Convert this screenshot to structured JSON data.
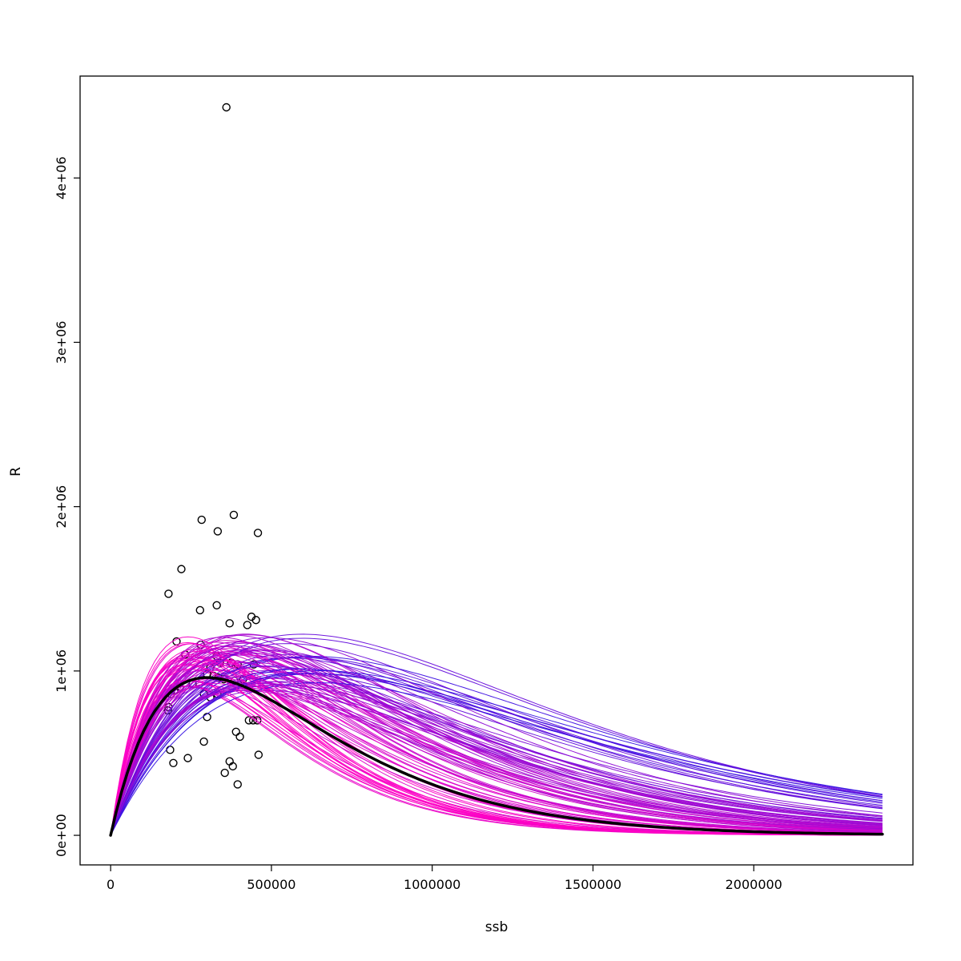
{
  "chart_data": {
    "type": "line",
    "title": "",
    "xlabel": "ssb",
    "ylabel": "R",
    "xlim": [
      -95000,
      2495000
    ],
    "ylim": [
      -180000,
      4620000
    ],
    "grid": false,
    "box": true,
    "legend": null,
    "x_ticks": [
      {
        "value": 0,
        "label": "0"
      },
      {
        "value": 500000,
        "label": "500000"
      },
      {
        "value": 1000000,
        "label": "1000000"
      },
      {
        "value": 1500000,
        "label": "1500000"
      },
      {
        "value": 2000000,
        "label": "2000000"
      }
    ],
    "y_ticks": [
      {
        "value": 0,
        "label": "0e+00"
      },
      {
        "value": 1000000,
        "label": "1e+06"
      },
      {
        "value": 2000000,
        "label": "2e+06"
      },
      {
        "value": 3000000,
        "label": "3e+06"
      },
      {
        "value": 4000000,
        "label": "4e+06"
      }
    ],
    "scatter": {
      "name": "observed-points",
      "marker": "open-circle",
      "color": "#000000",
      "radius": 4.5,
      "points": [
        [
          360000,
          4430000
        ],
        [
          283000,
          1920000
        ],
        [
          383000,
          1950000
        ],
        [
          333000,
          1850000
        ],
        [
          458000,
          1840000
        ],
        [
          220000,
          1620000
        ],
        [
          180000,
          1470000
        ],
        [
          278000,
          1370000
        ],
        [
          330000,
          1400000
        ],
        [
          370000,
          1290000
        ],
        [
          438000,
          1330000
        ],
        [
          425000,
          1280000
        ],
        [
          452000,
          1310000
        ],
        [
          205000,
          1180000
        ],
        [
          280000,
          1160000
        ],
        [
          232000,
          1100000
        ],
        [
          330000,
          1090000
        ],
        [
          375000,
          1050000
        ],
        [
          395000,
          1040000
        ],
        [
          445000,
          1040000
        ],
        [
          310000,
          1020000
        ],
        [
          340000,
          1050000
        ],
        [
          300000,
          980000
        ],
        [
          320000,
          970000
        ],
        [
          335000,
          960000
        ],
        [
          352000,
          950000
        ],
        [
          385000,
          940000
        ],
        [
          412000,
          950000
        ],
        [
          188000,
          860000
        ],
        [
          200000,
          880000
        ],
        [
          215000,
          900000
        ],
        [
          255000,
          920000
        ],
        [
          290000,
          860000
        ],
        [
          310000,
          840000
        ],
        [
          332000,
          860000
        ],
        [
          180000,
          780000
        ],
        [
          178000,
          760000
        ],
        [
          300000,
          720000
        ],
        [
          430000,
          700000
        ],
        [
          443000,
          700000
        ],
        [
          456000,
          700000
        ],
        [
          390000,
          630000
        ],
        [
          402000,
          600000
        ],
        [
          290000,
          570000
        ],
        [
          185000,
          520000
        ],
        [
          240000,
          470000
        ],
        [
          195000,
          440000
        ],
        [
          370000,
          450000
        ],
        [
          380000,
          420000
        ],
        [
          460000,
          490000
        ],
        [
          355000,
          380000
        ],
        [
          395000,
          310000
        ]
      ]
    },
    "median_curve": {
      "name": "median-fit",
      "model": "ricker",
      "peak_ssb": 300000,
      "peak_R": 960000,
      "color": "#000000",
      "width": 3.5
    },
    "ensemble": {
      "name": "sample-fit-curves",
      "model": "ricker",
      "count": 100,
      "seed": 11,
      "peak_ssb_range": [
        235000,
        655000
      ],
      "peak_R_range": [
        880000,
        1230000
      ],
      "color_low": "#FF00C4",
      "color_high": "#3612E3",
      "width": 1,
      "x_max": 2400000
    }
  }
}
